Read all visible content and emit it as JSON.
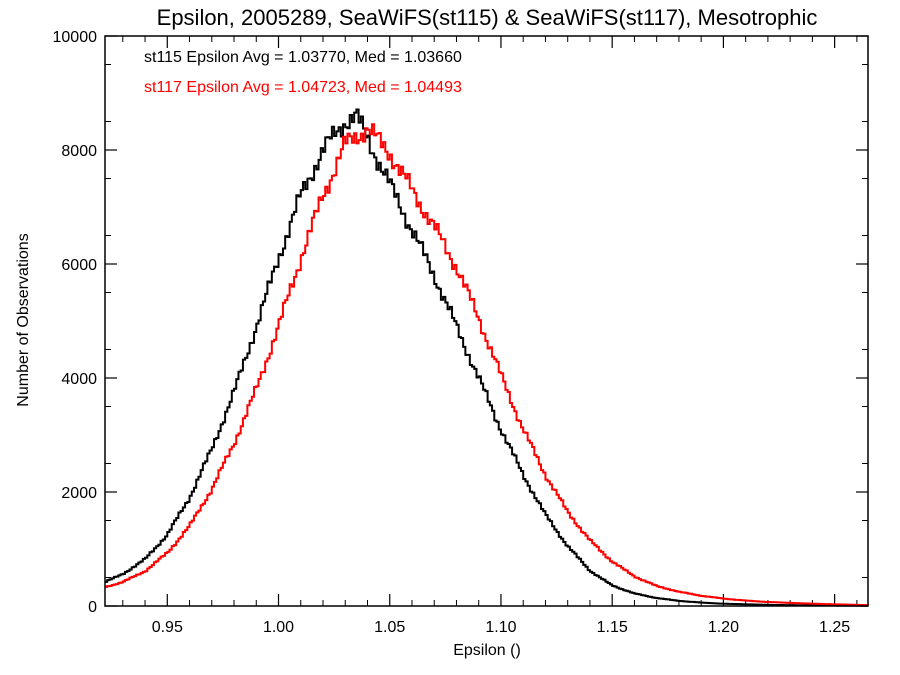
{
  "chart_data": {
    "type": "line",
    "title": "Epsilon, 2005289, SeaWiFS(st115) & SeaWiFS(st117), Mesotrophic",
    "xlabel": "Epsilon ()",
    "ylabel": "Number of Observations",
    "xlim": [
      0.922,
      1.265
    ],
    "ylim": [
      0,
      10000
    ],
    "x_ticks": [
      0.95,
      1.0,
      1.05,
      1.1,
      1.15,
      1.2,
      1.25
    ],
    "x_tick_labels": [
      "0.95",
      "1.00",
      "1.05",
      "1.10",
      "1.15",
      "1.20",
      "1.25"
    ],
    "y_ticks": [
      0,
      2000,
      4000,
      6000,
      8000,
      10000
    ],
    "y_tick_labels": [
      "0",
      "2000",
      "4000",
      "6000",
      "8000",
      "10000"
    ],
    "grid": false,
    "legend_position": "top-left",
    "series": [
      {
        "name": "st115 Epsilon Avg = 1.03770, Med = 1.03660",
        "color": "#000000",
        "style": "step",
        "x": [
          0.922,
          0.93,
          0.94,
          0.95,
          0.96,
          0.97,
          0.98,
          0.99,
          1.0,
          1.01,
          1.02,
          1.03,
          1.035,
          1.04,
          1.05,
          1.06,
          1.07,
          1.08,
          1.09,
          1.1,
          1.11,
          1.12,
          1.13,
          1.14,
          1.15,
          1.16,
          1.17,
          1.18,
          1.19,
          1.2,
          1.22,
          1.24,
          1.265
        ],
        "y": [
          420,
          560,
          820,
          1250,
          1900,
          2750,
          3750,
          4900,
          6100,
          7200,
          8000,
          8500,
          8600,
          8200,
          7400,
          6600,
          5800,
          4900,
          4000,
          3100,
          2300,
          1600,
          1050,
          620,
          360,
          220,
          140,
          90,
          60,
          40,
          20,
          10,
          5
        ]
      },
      {
        "name": "st117 Epsilon Avg = 1.04723, Med = 1.04493",
        "color": "#ff0000",
        "style": "step",
        "x": [
          0.922,
          0.93,
          0.94,
          0.95,
          0.96,
          0.97,
          0.98,
          0.99,
          1.0,
          1.01,
          1.02,
          1.03,
          1.04,
          1.05,
          1.06,
          1.07,
          1.08,
          1.09,
          1.1,
          1.11,
          1.12,
          1.13,
          1.14,
          1.15,
          1.16,
          1.17,
          1.18,
          1.19,
          1.2,
          1.21,
          1.22,
          1.24,
          1.265
        ],
        "y": [
          330,
          420,
          610,
          930,
          1400,
          2050,
          2850,
          3800,
          4900,
          6100,
          7200,
          8100,
          8380,
          7950,
          7300,
          6650,
          5950,
          5050,
          4050,
          3100,
          2300,
          1650,
          1150,
          780,
          520,
          350,
          250,
          180,
          130,
          95,
          70,
          40,
          15
        ]
      }
    ]
  }
}
